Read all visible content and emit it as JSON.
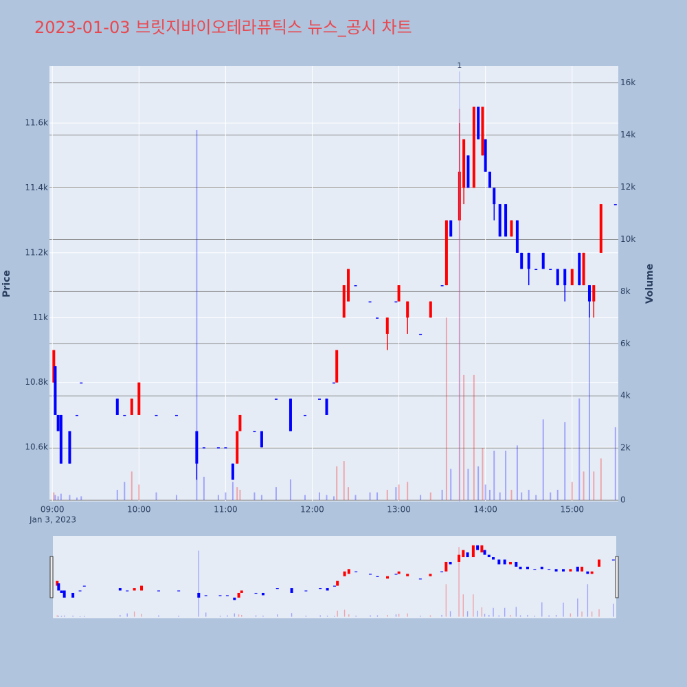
{
  "chart_data": {
    "type": "candlestick",
    "title": "2023-01-03 브릿지바이오테라퓨틱스 뉴스_공시 차트",
    "y_label": "Price",
    "y2_label": "Volume",
    "x": [
      "09:01",
      "09:02",
      "09:04",
      "09:06",
      "09:12",
      "09:17",
      "09:20",
      "09:45",
      "09:50",
      "09:55",
      "10:00",
      "10:12",
      "10:26",
      "10:40",
      "10:45",
      "10:55",
      "11:00",
      "11:05",
      "11:08",
      "11:10",
      "11:20",
      "11:25",
      "11:35",
      "11:45",
      "11:55",
      "12:05",
      "12:10",
      "12:15",
      "12:17",
      "12:22",
      "12:25",
      "12:30",
      "12:40",
      "12:45",
      "12:52",
      "12:58",
      "13:00",
      "13:06",
      "13:15",
      "13:22",
      "13:30",
      "13:33",
      "13:36",
      "13:42",
      "13:45",
      "13:48",
      "13:52",
      "13:55",
      "13:58",
      "14:00",
      "14:03",
      "14:06",
      "14:10",
      "14:14",
      "14:18",
      "14:22",
      "14:25",
      "14:30",
      "14:35",
      "14:40",
      "14:45",
      "14:50",
      "14:55",
      "15:00",
      "15:05",
      "15:08",
      "15:12",
      "15:15",
      "15:20",
      "15:30"
    ],
    "open": [
      10800,
      10850,
      10700,
      10700,
      10650,
      10700,
      10800,
      10750,
      10700,
      10700,
      10700,
      10700,
      10700,
      10650,
      10600,
      10600,
      10600,
      10550,
      10550,
      10650,
      10650,
      10650,
      10750,
      10750,
      10700,
      10750,
      10750,
      10800,
      10800,
      11000,
      11050,
      11100,
      11050,
      11000,
      10950,
      11050,
      11050,
      11000,
      10950,
      11000,
      11100,
      11100,
      11300,
      11300,
      11400,
      11500,
      11400,
      11650,
      11500,
      11550,
      11450,
      11400,
      11350,
      11350,
      11250,
      11300,
      11200,
      11200,
      11150,
      11200,
      11150,
      11150,
      11150,
      11100,
      11200,
      11100,
      11100,
      11050,
      11200,
      11350
    ],
    "high": [
      10900,
      10850,
      10700,
      10700,
      10650,
      10700,
      10800,
      10750,
      10700,
      10750,
      10800,
      10700,
      10700,
      10650,
      10600,
      10600,
      10600,
      10550,
      10650,
      10700,
      10650,
      10650,
      10750,
      10750,
      10700,
      10750,
      10750,
      10800,
      10900,
      11100,
      11150,
      11100,
      11050,
      11000,
      11000,
      11050,
      11100,
      11050,
      10950,
      11050,
      11100,
      11300,
      11300,
      11600,
      11550,
      11500,
      11650,
      11650,
      11650,
      11550,
      11450,
      11400,
      11350,
      11350,
      11300,
      11300,
      11200,
      11200,
      11150,
      11200,
      11150,
      11150,
      11150,
      11150,
      11200,
      11200,
      11100,
      11100,
      11350,
      11350
    ],
    "low": [
      10800,
      10700,
      10650,
      10550,
      10550,
      10700,
      10800,
      10700,
      10700,
      10700,
      10700,
      10700,
      10700,
      10500,
      10600,
      10600,
      10600,
      10500,
      10550,
      10650,
      10650,
      10600,
      10750,
      10650,
      10700,
      10750,
      10700,
      10800,
      10800,
      11000,
      11050,
      11100,
      11050,
      11000,
      10900,
      11050,
      11050,
      10950,
      10950,
      11000,
      11100,
      11100,
      11250,
      11300,
      11350,
      11400,
      11400,
      11550,
      11500,
      11450,
      11400,
      11300,
      11250,
      11250,
      11250,
      11200,
      11150,
      11100,
      11150,
      11150,
      11150,
      11100,
      11050,
      11100,
      11100,
      11100,
      11000,
      11000,
      11200,
      11350
    ],
    "close": [
      10900,
      10700,
      10650,
      10550,
      10550,
      10700,
      10800,
      10700,
      10700,
      10750,
      10800,
      10700,
      10700,
      10550,
      10600,
      10600,
      10600,
      10500,
      10650,
      10700,
      10650,
      10600,
      10750,
      10650,
      10700,
      10750,
      10700,
      10800,
      10900,
      11100,
      11150,
      11100,
      11050,
      11000,
      11000,
      11050,
      11100,
      11050,
      10950,
      11050,
      11100,
      11300,
      11250,
      11450,
      11550,
      11400,
      11650,
      11550,
      11650,
      11450,
      11400,
      11350,
      11250,
      11250,
      11300,
      11200,
      11150,
      11150,
      11150,
      11150,
      11150,
      11100,
      11100,
      11150,
      11100,
      11200,
      11050,
      11100,
      11350,
      11350
    ],
    "volume": [
      300,
      200,
      150,
      250,
      200,
      100,
      150,
      400,
      700,
      1100,
      600,
      300,
      200,
      14200,
      900,
      200,
      300,
      700,
      500,
      400,
      300,
      200,
      500,
      800,
      200,
      300,
      200,
      150,
      1300,
      1500,
      500,
      200,
      300,
      300,
      400,
      500,
      600,
      700,
      200,
      300,
      400,
      7000,
      1200,
      15000,
      4800,
      1200,
      4800,
      1300,
      2000,
      600,
      400,
      1900,
      300,
      1900,
      400,
      2100,
      300,
      400,
      200,
      3100,
      300,
      400,
      3000,
      700,
      3900,
      1100,
      7000,
      1100,
      1600,
      2800
    ],
    "increasing_color": "#ff0000",
    "decreasing_color": "#0000ff",
    "xlim": [
      "08:58",
      "15:32"
    ],
    "xticks": [
      "09:00",
      "10:00",
      "11:00",
      "12:00",
      "13:00",
      "14:00",
      "15:00"
    ],
    "x_date_label": "Jan 3, 2023",
    "ylim": [
      10433,
      11776
    ],
    "yticks": [
      {
        "value": 10600,
        "label": "10.6k"
      },
      {
        "value": 10800,
        "label": "10.8k"
      },
      {
        "value": 11000,
        "label": "11k"
      },
      {
        "value": 11200,
        "label": "11.2k"
      },
      {
        "value": 11400,
        "label": "11.4k"
      },
      {
        "value": 11600,
        "label": "11.6k"
      }
    ],
    "y2lim": [
      -50,
      16650
    ],
    "y2ticks": [
      0,
      {
        "value": 2000,
        "label": "2k"
      },
      {
        "value": 4000,
        "label": "4k"
      },
      {
        "value": 6000,
        "label": "6k"
      },
      {
        "value": 8000,
        "label": "8k"
      },
      {
        "value": 10000,
        "label": "10k"
      },
      {
        "value": 12000,
        "label": "12k"
      },
      {
        "value": 14000,
        "label": "14k"
      },
      {
        "value": 16000,
        "label": "16k"
      }
    ],
    "annotations": [
      {
        "text": "1",
        "x": "13:42"
      }
    ],
    "grid": true
  }
}
